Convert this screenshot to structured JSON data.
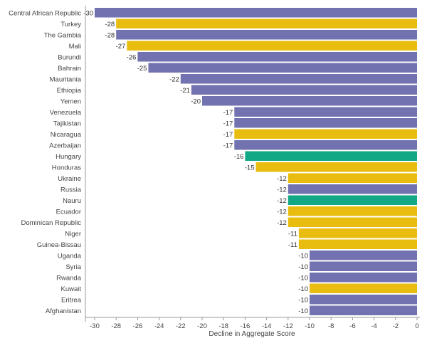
{
  "chart_data": {
    "type": "bar",
    "orientation": "horizontal",
    "xlabel": "Decline in Aggregate Score",
    "xlim": [
      -30,
      0
    ],
    "xticks": [
      -30,
      -28,
      -26,
      -24,
      -22,
      -20,
      -18,
      -16,
      -14,
      -12,
      -10,
      -8,
      -6,
      -4,
      -2,
      0
    ],
    "grid": false,
    "colors": {
      "blue": "#7272b0",
      "yellow": "#e8bd10",
      "green": "#12a886"
    },
    "bars": [
      {
        "category": "Central African Republic",
        "value": -30,
        "color": "blue"
      },
      {
        "category": "Turkey",
        "value": -28,
        "color": "yellow"
      },
      {
        "category": "The Gambia",
        "value": -28,
        "color": "blue"
      },
      {
        "category": "Mali",
        "value": -27,
        "color": "yellow"
      },
      {
        "category": "Burundi",
        "value": -26,
        "color": "blue"
      },
      {
        "category": "Bahrain",
        "value": -25,
        "color": "blue"
      },
      {
        "category": "Mauritania",
        "value": -22,
        "color": "blue"
      },
      {
        "category": "Ethiopia",
        "value": -21,
        "color": "blue"
      },
      {
        "category": "Yemen",
        "value": -20,
        "color": "blue"
      },
      {
        "category": "Venezuela",
        "value": -17,
        "color": "blue"
      },
      {
        "category": "Tajikistan",
        "value": -17,
        "color": "blue"
      },
      {
        "category": "Nicaragua",
        "value": -17,
        "color": "yellow"
      },
      {
        "category": "Azerbaijan",
        "value": -17,
        "color": "blue"
      },
      {
        "category": "Hungary",
        "value": -16,
        "color": "green"
      },
      {
        "category": "Honduras",
        "value": -15,
        "color": "yellow"
      },
      {
        "category": "Ukraine",
        "value": -12,
        "color": "yellow"
      },
      {
        "category": "Russia",
        "value": -12,
        "color": "blue"
      },
      {
        "category": "Nauru",
        "value": -12,
        "color": "green"
      },
      {
        "category": "Ecuador",
        "value": -12,
        "color": "yellow"
      },
      {
        "category": "Dominican Republic",
        "value": -12,
        "color": "yellow"
      },
      {
        "category": "Niger",
        "value": -11,
        "color": "yellow"
      },
      {
        "category": "Guinea-Bissau",
        "value": -11,
        "color": "yellow"
      },
      {
        "category": "Uganda",
        "value": -10,
        "color": "blue"
      },
      {
        "category": "Syria",
        "value": -10,
        "color": "blue"
      },
      {
        "category": "Rwanda",
        "value": -10,
        "color": "blue"
      },
      {
        "category": "Kuwait",
        "value": -10,
        "color": "yellow"
      },
      {
        "category": "Eritrea",
        "value": -10,
        "color": "blue"
      },
      {
        "category": "Afghanistan",
        "value": -10,
        "color": "blue"
      }
    ]
  }
}
